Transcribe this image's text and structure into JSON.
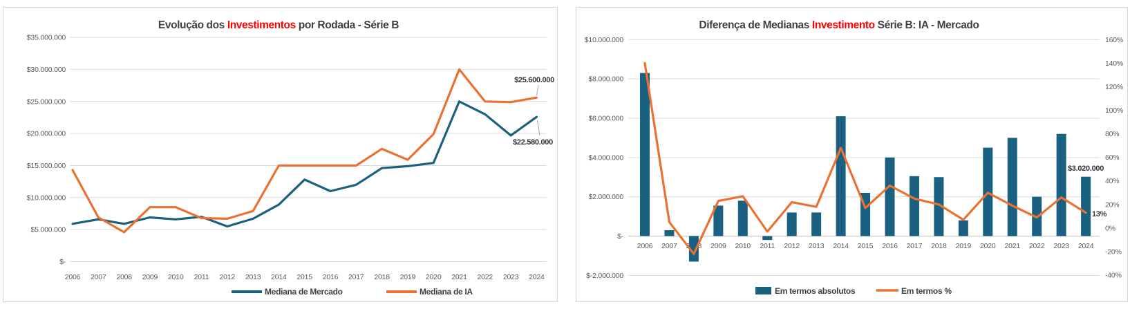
{
  "page": {
    "background": "#FFFFFF"
  },
  "colors": {
    "blue": "#1A6080",
    "orange": "#E97132",
    "red": "#FF0000",
    "grid": "#D9D9D9",
    "zero_axis": "#BFBFBF",
    "tick_text": "#595959",
    "title_text": "#404040",
    "data_label_text": "#33333D",
    "leader_line": "#A6A6A6",
    "panel_border": "#D6D6D6"
  },
  "chart_data": [
    {
      "type": "line",
      "title": "Evolução dos Investimentos por Rodada - Série B",
      "title_parts": [
        {
          "text": "Evolução dos ",
          "color": "#404040"
        },
        {
          "text": "Investimentos",
          "color": "#FF0000"
        },
        {
          "text": " por Rodada - Série B",
          "color": "#404040"
        }
      ],
      "categories": [
        "2006",
        "2007",
        "2008",
        "2009",
        "2010",
        "2011",
        "2012",
        "2013",
        "2014",
        "2015",
        "2016",
        "2017",
        "2018",
        "2019",
        "2020",
        "2021",
        "2022",
        "2023",
        "2024"
      ],
      "series": [
        {
          "name": "Mediana de Mercado",
          "color": "#1A6080",
          "values": [
            5900000,
            6600000,
            5900000,
            6900000,
            6600000,
            7000000,
            5500000,
            6700000,
            8900000,
            12800000,
            11000000,
            12000000,
            14600000,
            14900000,
            15400000,
            25000000,
            23000000,
            19700000,
            22580000
          ]
        },
        {
          "name": "Mediana de IA",
          "color": "#E97132",
          "values": [
            14300000,
            6900000,
            4600000,
            8500000,
            8500000,
            6800000,
            6700000,
            7900000,
            15000000,
            15000000,
            15000000,
            15000000,
            17600000,
            15900000,
            19900000,
            30000000,
            25000000,
            24900000,
            25600000
          ]
        }
      ],
      "y_axis": {
        "values": [
          0,
          5000000,
          10000000,
          15000000,
          20000000,
          25000000,
          30000000,
          35000000
        ],
        "labels": [
          "$-",
          "$5.000.000",
          "$10.000.000",
          "$15.000.000",
          "$20.000.000",
          "$25.000.000",
          "$30.000.000",
          "$35.000.000"
        ]
      },
      "ylim": [
        0,
        35000000
      ],
      "grid": true,
      "legend_position": "bottom",
      "annotations": [
        {
          "text": "$25.600.000",
          "series": "Mediana de IA",
          "category": "2024",
          "value": 25600000
        },
        {
          "text": "$22.580.000",
          "series": "Mediana de Mercado",
          "category": "2024",
          "value": 22580000
        }
      ]
    },
    {
      "type": "combo-bar-line",
      "title": "Diferença de Medianas Investimento Série B: IA - Mercado",
      "title_parts": [
        {
          "text": "Diferença de Medianas ",
          "color": "#404040"
        },
        {
          "text": "Investimento",
          "color": "#FF0000"
        },
        {
          "text": " Série B: IA - Mercado",
          "color": "#404040"
        }
      ],
      "categories": [
        "2006",
        "2007",
        "2008",
        "2009",
        "2010",
        "2011",
        "2012",
        "2013",
        "2014",
        "2015",
        "2016",
        "2017",
        "2018",
        "2019",
        "2020",
        "2021",
        "2022",
        "2023",
        "2024"
      ],
      "bar_series": {
        "name": "Em termos absolutos",
        "color": "#1A6080",
        "values": [
          8300000,
          300000,
          -1300000,
          1550000,
          1800000,
          -200000,
          1200000,
          1200000,
          6100000,
          2200000,
          4000000,
          3050000,
          3000000,
          800000,
          4500000,
          5000000,
          2000000,
          5200000,
          3020000
        ]
      },
      "line_series": {
        "name": "Em termos %",
        "color": "#E97132",
        "axis": "right",
        "values": [
          140,
          5,
          -22,
          23,
          27,
          -3,
          22,
          18,
          68,
          17,
          36,
          25,
          20,
          7,
          30,
          19,
          9,
          26,
          13
        ]
      },
      "left_axis": {
        "lim": [
          -2000000,
          10000000
        ],
        "values": [
          -2000000,
          0,
          2000000,
          4000000,
          6000000,
          8000000,
          10000000
        ],
        "labels": [
          "$-2.000.000",
          "$-",
          "$2.000.000",
          "$4.000.000",
          "$6.000.000",
          "$8.000.000",
          "$10.000.000"
        ]
      },
      "right_axis": {
        "lim": [
          -40,
          160
        ],
        "values": [
          160,
          140,
          120,
          100,
          80,
          60,
          40,
          20,
          0,
          -20,
          -40
        ],
        "labels": [
          "160%",
          "140%",
          "120%",
          "100%",
          "80%",
          "60%",
          "40%",
          "20%",
          "0%",
          "-20%",
          "-40%"
        ]
      },
      "grid": true,
      "legend_position": "bottom",
      "annotations": [
        {
          "text": "$3.020.000",
          "target": "bar",
          "category": "2024",
          "value": 3020000
        },
        {
          "text": "13%",
          "target": "line",
          "category": "2024",
          "value": 13
        }
      ]
    }
  ]
}
